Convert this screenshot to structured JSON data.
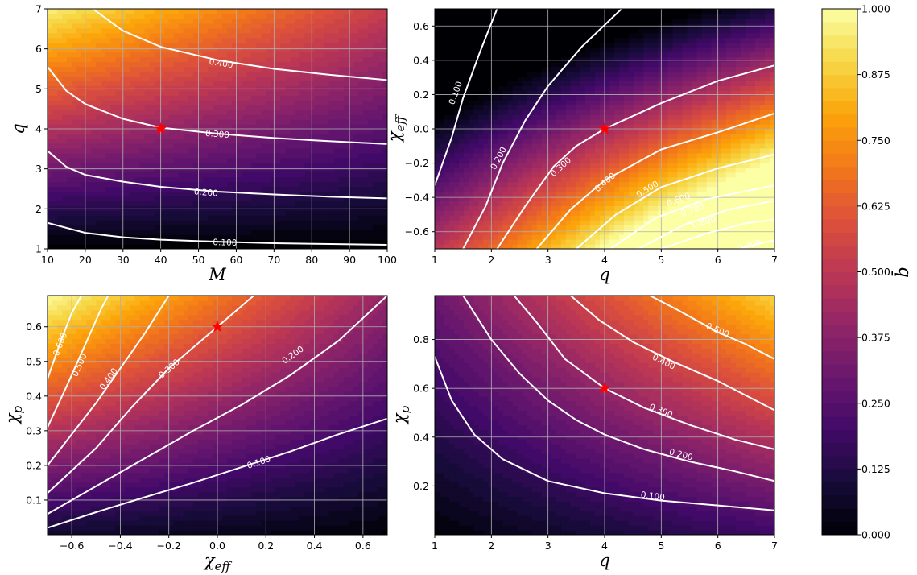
{
  "chart_data": [
    {
      "type": "heatmap",
      "subtype": "filled-contour",
      "colormap": "inferno",
      "grid": true,
      "xlabel": "M",
      "ylabel": "q",
      "xlim": [
        10,
        100
      ],
      "ylim": [
        1,
        7
      ],
      "xticks": [
        "10",
        "20",
        "30",
        "40",
        "50",
        "60",
        "70",
        "80",
        "90",
        "100"
      ],
      "yticks": [
        "1",
        "2",
        "3",
        "4",
        "5",
        "6",
        "7"
      ],
      "marker": {
        "x": 40,
        "y": 4,
        "symbol": "star",
        "color": "#ff0000"
      },
      "contours": [
        {
          "level": "0.100",
          "points": [
            [
              10,
              1.65
            ],
            [
              20,
              1.4
            ],
            [
              30,
              1.29
            ],
            [
              40,
              1.23
            ],
            [
              55,
              1.18
            ],
            [
              70,
              1.14
            ],
            [
              85,
              1.12
            ],
            [
              100,
              1.1
            ]
          ]
        },
        {
          "level": "0.200",
          "points": [
            [
              10,
              3.45
            ],
            [
              15,
              3.05
            ],
            [
              20,
              2.85
            ],
            [
              30,
              2.68
            ],
            [
              40,
              2.55
            ],
            [
              55,
              2.43
            ],
            [
              70,
              2.36
            ],
            [
              85,
              2.3
            ],
            [
              100,
              2.26
            ]
          ]
        },
        {
          "level": "0.300",
          "points": [
            [
              10,
              5.55
            ],
            [
              15,
              4.95
            ],
            [
              20,
              4.62
            ],
            [
              30,
              4.25
            ],
            [
              40,
              4.03
            ],
            [
              55,
              3.88
            ],
            [
              70,
              3.77
            ],
            [
              85,
              3.69
            ],
            [
              100,
              3.62
            ]
          ]
        },
        {
          "level": "0.400",
          "points": [
            [
              22,
              7.0
            ],
            [
              30,
              6.45
            ],
            [
              40,
              6.05
            ],
            [
              55,
              5.72
            ],
            [
              70,
              5.5
            ],
            [
              85,
              5.35
            ],
            [
              100,
              5.22
            ]
          ]
        }
      ],
      "contour_labels": [
        {
          "text": "0.100",
          "x": 57,
          "y": 1.17
        },
        {
          "text": "0.200",
          "x": 52,
          "y": 2.42
        },
        {
          "text": "0.300",
          "x": 55,
          "y": 3.88
        },
        {
          "text": "0.400",
          "x": 56,
          "y": 5.65
        }
      ]
    },
    {
      "type": "heatmap",
      "subtype": "filled-contour",
      "colormap": "inferno",
      "grid": true,
      "xlabel": "q",
      "ylabel": "χeff",
      "xlim": [
        1,
        7
      ],
      "ylim": [
        -0.7,
        0.7
      ],
      "xticks": [
        "1",
        "2",
        "3",
        "4",
        "5",
        "6",
        "7"
      ],
      "yticks": [
        "−0.6",
        "−0.4",
        "−0.2",
        "0.0",
        "0.2",
        "0.4",
        "0.6"
      ],
      "marker": {
        "x": 4,
        "y": 0.0,
        "symbol": "star",
        "color": "#ff0000"
      },
      "contours": [
        {
          "level": "0.100",
          "points": [
            [
              1.0,
              -0.33
            ],
            [
              1.3,
              -0.05
            ],
            [
              1.5,
              0.18
            ],
            [
              1.8,
              0.45
            ],
            [
              2.1,
              0.7
            ]
          ]
        },
        {
          "level": "0.200",
          "points": [
            [
              1.5,
              -0.7
            ],
            [
              1.9,
              -0.45
            ],
            [
              2.2,
              -0.2
            ],
            [
              2.6,
              0.05
            ],
            [
              3.0,
              0.25
            ],
            [
              3.6,
              0.48
            ],
            [
              4.3,
              0.7
            ]
          ]
        },
        {
          "level": "0.300",
          "points": [
            [
              2.1,
              -0.7
            ],
            [
              2.6,
              -0.45
            ],
            [
              3.1,
              -0.22
            ],
            [
              3.5,
              -0.1
            ],
            [
              4.0,
              0.0
            ],
            [
              5.0,
              0.15
            ],
            [
              6.0,
              0.28
            ],
            [
              7.0,
              0.37
            ]
          ]
        },
        {
          "level": "0.400",
          "points": [
            [
              2.8,
              -0.7
            ],
            [
              3.4,
              -0.47
            ],
            [
              4.0,
              -0.3
            ],
            [
              5.0,
              -0.12
            ],
            [
              6.0,
              -0.02
            ],
            [
              7.0,
              0.09
            ]
          ]
        },
        {
          "level": "0.500",
          "points": [
            [
              3.5,
              -0.7
            ],
            [
              4.2,
              -0.5
            ],
            [
              5.0,
              -0.34
            ],
            [
              6.0,
              -0.23
            ],
            [
              7.0,
              -0.15
            ]
          ]
        },
        {
          "level": "0.600",
          "points": [
            [
              4.1,
              -0.7
            ],
            [
              4.9,
              -0.52
            ],
            [
              5.8,
              -0.41
            ],
            [
              7.0,
              -0.33
            ]
          ]
        },
        {
          "level": "0.700",
          "points": [
            [
              4.6,
              -0.7
            ],
            [
              5.4,
              -0.56
            ],
            [
              6.2,
              -0.47
            ],
            [
              7.0,
              -0.42
            ]
          ]
        },
        {
          "level": "0.800",
          "points": [
            [
              5.0,
              -0.7
            ],
            [
              5.8,
              -0.61
            ],
            [
              6.5,
              -0.55
            ],
            [
              7.0,
              -0.53
            ]
          ]
        },
        {
          "level": "0.800",
          "points": [
            [
              6.4,
              -0.7
            ],
            [
              6.7,
              -0.67
            ],
            [
              7.0,
              -0.65
            ]
          ]
        }
      ],
      "contour_labels": [
        {
          "text": "0.100",
          "x": 1.36,
          "y": 0.21
        },
        {
          "text": "0.200",
          "x": 2.12,
          "y": -0.17
        },
        {
          "text": "0.300",
          "x": 3.22,
          "y": -0.22
        },
        {
          "text": "0.400",
          "x": 4.0,
          "y": -0.31
        },
        {
          "text": "0.500",
          "x": 4.75,
          "y": -0.35
        },
        {
          "text": "0.600",
          "x": 5.3,
          "y": -0.41
        },
        {
          "text": "0.700",
          "x": 5.55,
          "y": -0.47
        },
        {
          "text": "0.800",
          "x": 5.75,
          "y": -0.54
        },
        {
          "text": "0.800",
          "x": 6.55,
          "y": -0.68
        }
      ]
    },
    {
      "type": "heatmap",
      "subtype": "filled-contour",
      "colormap": "inferno",
      "grid": true,
      "xlabel": "χeff",
      "ylabel": "χp",
      "xlim": [
        -0.7,
        0.7
      ],
      "ylim": [
        0.0,
        0.69
      ],
      "xticks": [
        "−0.6",
        "−0.4",
        "−0.2",
        "0.0",
        "0.2",
        "0.4",
        "0.6"
      ],
      "yticks": [
        "0.1",
        "0.2",
        "0.3",
        "0.4",
        "0.5",
        "0.6"
      ],
      "marker": {
        "x": 0.0,
        "y": 0.6,
        "symbol": "star",
        "color": "#ff0000"
      },
      "contours": [
        {
          "level": "0.100",
          "points": [
            [
              -0.7,
              0.02
            ],
            [
              -0.5,
              0.065
            ],
            [
              -0.3,
              0.108
            ],
            [
              -0.1,
              0.15
            ],
            [
              0.1,
              0.195
            ],
            [
              0.3,
              0.24
            ],
            [
              0.5,
              0.29
            ],
            [
              0.7,
              0.335
            ]
          ]
        },
        {
          "level": "0.200",
          "points": [
            [
              -0.7,
              0.06
            ],
            [
              -0.5,
              0.14
            ],
            [
              -0.3,
              0.22
            ],
            [
              -0.1,
              0.3
            ],
            [
              0.1,
              0.375
            ],
            [
              0.3,
              0.46
            ],
            [
              0.5,
              0.56
            ],
            [
              0.7,
              0.69
            ]
          ]
        },
        {
          "level": "0.300",
          "points": [
            [
              -0.7,
              0.12
            ],
            [
              -0.5,
              0.25
            ],
            [
              -0.35,
              0.37
            ],
            [
              -0.2,
              0.48
            ],
            [
              -0.05,
              0.57
            ],
            [
              0.0,
              0.6
            ],
            [
              0.15,
              0.69
            ]
          ]
        },
        {
          "level": "0.400",
          "points": [
            [
              -0.7,
              0.2
            ],
            [
              -0.6,
              0.29
            ],
            [
              -0.5,
              0.38
            ],
            [
              -0.4,
              0.48
            ],
            [
              -0.3,
              0.58
            ],
            [
              -0.2,
              0.69
            ]
          ]
        },
        {
          "level": "0.500",
          "points": [
            [
              -0.7,
              0.31
            ],
            [
              -0.62,
              0.43
            ],
            [
              -0.55,
              0.54
            ],
            [
              -0.48,
              0.65
            ],
            [
              -0.45,
              0.69
            ]
          ]
        },
        {
          "level": "0.600",
          "points": [
            [
              -0.7,
              0.45
            ],
            [
              -0.65,
              0.55
            ],
            [
              -0.6,
              0.64
            ],
            [
              -0.56,
              0.69
            ]
          ]
        }
      ],
      "contour_labels": [
        {
          "text": "0.100",
          "x": 0.17,
          "y": 0.21
        },
        {
          "text": "0.200",
          "x": 0.31,
          "y": 0.52
        },
        {
          "text": "0.300",
          "x": -0.2,
          "y": 0.48
        },
        {
          "text": "0.400",
          "x": -0.45,
          "y": 0.45
        },
        {
          "text": "0.500",
          "x": -0.57,
          "y": 0.49
        },
        {
          "text": "0.600",
          "x": -0.65,
          "y": 0.55
        }
      ]
    },
    {
      "type": "heatmap",
      "subtype": "filled-contour",
      "colormap": "inferno",
      "grid": true,
      "xlabel": "q",
      "ylabel": "χp",
      "xlim": [
        1,
        7
      ],
      "ylim": [
        0.0,
        0.98
      ],
      "xticks": [
        "1",
        "2",
        "3",
        "4",
        "5",
        "6",
        "7"
      ],
      "yticks": [
        "0.2",
        "0.4",
        "0.6",
        "0.8"
      ],
      "marker": {
        "x": 4,
        "y": 0.6,
        "symbol": "star",
        "color": "#ff0000"
      },
      "contours": [
        {
          "level": "0.100",
          "points": [
            [
              1.0,
              0.73
            ],
            [
              1.3,
              0.55
            ],
            [
              1.7,
              0.41
            ],
            [
              2.2,
              0.31
            ],
            [
              3.0,
              0.22
            ],
            [
              4.0,
              0.17
            ],
            [
              5.0,
              0.14
            ],
            [
              6.0,
              0.12
            ],
            [
              7.0,
              0.1
            ]
          ]
        },
        {
          "level": "0.200",
          "points": [
            [
              1.5,
              0.98
            ],
            [
              2.0,
              0.8
            ],
            [
              2.5,
              0.66
            ],
            [
              3.0,
              0.55
            ],
            [
              3.5,
              0.47
            ],
            [
              4.0,
              0.41
            ],
            [
              4.7,
              0.35
            ],
            [
              5.5,
              0.3
            ],
            [
              6.3,
              0.26
            ],
            [
              7.0,
              0.22
            ]
          ]
        },
        {
          "level": "0.300",
          "points": [
            [
              2.4,
              0.98
            ],
            [
              2.8,
              0.87
            ],
            [
              3.3,
              0.72
            ],
            [
              4.0,
              0.6
            ],
            [
              4.7,
              0.52
            ],
            [
              5.5,
              0.45
            ],
            [
              6.3,
              0.39
            ],
            [
              7.0,
              0.35
            ]
          ]
        },
        {
          "level": "0.400",
          "points": [
            [
              3.4,
              0.98
            ],
            [
              3.9,
              0.88
            ],
            [
              4.5,
              0.79
            ],
            [
              5.2,
              0.71
            ],
            [
              6.0,
              0.63
            ],
            [
              7.0,
              0.51
            ]
          ]
        },
        {
          "level": "0.500",
          "points": [
            [
              4.8,
              0.98
            ],
            [
              5.3,
              0.92
            ],
            [
              6.0,
              0.83
            ],
            [
              6.5,
              0.78
            ],
            [
              7.0,
              0.72
            ]
          ]
        }
      ],
      "contour_labels": [
        {
          "text": "0.100",
          "x": 4.85,
          "y": 0.16
        },
        {
          "text": "0.200",
          "x": 5.35,
          "y": 0.33
        },
        {
          "text": "0.300",
          "x": 5.0,
          "y": 0.51
        },
        {
          "text": "0.400",
          "x": 5.05,
          "y": 0.71
        },
        {
          "text": "0.500",
          "x": 6.0,
          "y": 0.84
        }
      ]
    }
  ],
  "colorbar": {
    "label": "b̄",
    "range": [
      0.0,
      1.0
    ],
    "ticks": [
      "0.000",
      "0.125",
      "0.250",
      "0.375",
      "0.500",
      "0.625",
      "0.750",
      "0.875",
      "1.000"
    ]
  }
}
